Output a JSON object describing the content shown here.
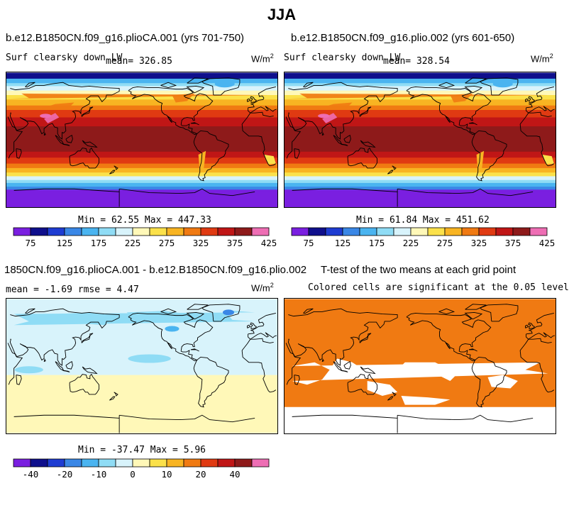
{
  "title": "JJA",
  "panels": [
    {
      "title": "b.e12.B1850CN.f09_g16.plioCA.001 (yrs 701-750)",
      "subtitle": "Surf clearsky down LW",
      "mean": "mean= 326.85",
      "units": "W/m",
      "units_exp": "2",
      "minmax": "Min =  62.55 Max = 447.33",
      "field": "clearsky"
    },
    {
      "title": "b.e12.B1850CN.f09_g16.plio.002 (yrs 601-650)",
      "subtitle": "Surf clearsky down LW",
      "mean": "mean= 328.54",
      "units": "W/m",
      "units_exp": "2",
      "minmax": "Min =  61.84 Max = 451.62",
      "field": "clearsky"
    },
    {
      "title": "1850CN.f09_g16.plioCA.001 - b.e12.B1850CN.f09_g16.plio.002",
      "subtitle": "mean =  -1.69    rmse =   4.47",
      "units": "W/m",
      "units_exp": "2",
      "minmax": "Min = -37.47 Max =   5.96",
      "field": "difference"
    },
    {
      "title": "T-test of the two means at each grid point",
      "subtitle": "Colored cells are significant at the 0.05 level",
      "field": "significance"
    }
  ],
  "colorbar_abs": {
    "colors": [
      "#7a1fe0",
      "#0f0f8c",
      "#1e3cd2",
      "#3a87e6",
      "#4ab4f0",
      "#8fdcf5",
      "#d8f3fb",
      "#fff8b8",
      "#fbe14a",
      "#f8b422",
      "#f07a12",
      "#e03a12",
      "#c01616",
      "#8e1a1a",
      "#ee6eb4"
    ],
    "labels": [
      "75",
      "125",
      "175",
      "225",
      "275",
      "325",
      "375",
      "425"
    ]
  },
  "colorbar_diff": {
    "colors": [
      "#7a1fe0",
      "#0f0f8c",
      "#1e3cd2",
      "#3a87e6",
      "#4ab4f0",
      "#8fdcf5",
      "#d8f3fb",
      "#fff8b8",
      "#fbe14a",
      "#f8b422",
      "#f07a12",
      "#e03a12",
      "#c01616",
      "#8e1a1a",
      "#ee6eb4"
    ],
    "labels": [
      "-40",
      "-20",
      "-10",
      "0",
      "10",
      "20",
      "40"
    ]
  },
  "significance_color": "#f07a12"
}
